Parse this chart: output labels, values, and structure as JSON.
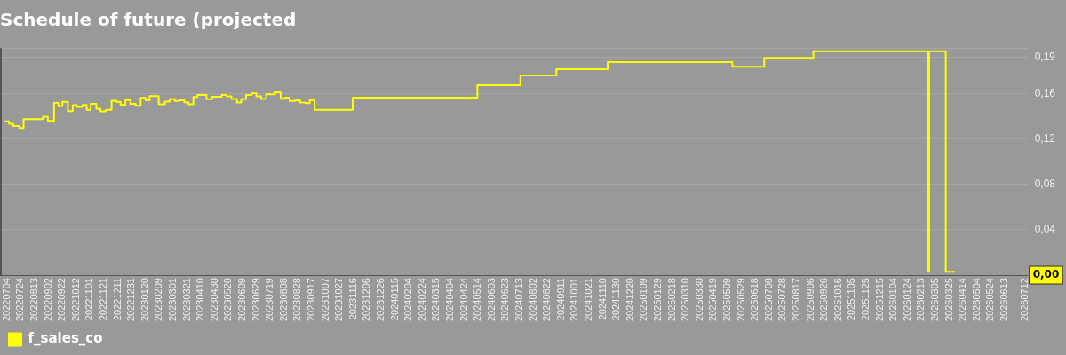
{
  "chart_data": {
    "type": "step",
    "title": "Schedule of future (projected",
    "x": [
      "2022-07-01",
      "2022-07-07",
      "2022-07-13",
      "2022-07-22",
      "2022-07-28",
      "2022-08-25",
      "2022-09-01",
      "2022-09-10",
      "2022-09-16",
      "2022-09-22",
      "2022-09-30",
      "2022-10-07",
      "2022-10-13",
      "2022-10-21",
      "2022-10-27",
      "2022-11-02",
      "2022-11-10",
      "2022-11-16",
      "2022-11-24",
      "2022-12-02",
      "2022-12-09",
      "2022-12-15",
      "2022-12-22",
      "2022-12-29",
      "2023-01-06",
      "2023-01-13",
      "2023-01-20",
      "2023-01-26",
      "2023-02-08",
      "2023-02-17",
      "2023-02-24",
      "2023-03-03",
      "2023-03-10",
      "2023-03-17",
      "2023-03-23",
      "2023-03-30",
      "2023-04-05",
      "2023-04-18",
      "2023-04-26",
      "2023-05-10",
      "2023-05-17",
      "2023-05-24",
      "2023-06-01",
      "2023-06-07",
      "2023-06-14",
      "2023-06-22",
      "2023-06-29",
      "2023-07-06",
      "2023-07-13",
      "2023-07-26",
      "2023-08-03",
      "2023-08-09",
      "2023-08-16",
      "2023-08-24",
      "2023-08-31",
      "2023-09-08",
      "2023-09-14",
      "2023-09-21",
      "2023-11-15",
      "2024-05-13",
      "2024-07-14",
      "2024-09-04",
      "2024-11-17",
      "2025-05-16",
      "2025-07-01",
      "2025-09-10",
      "2026-02-22",
      "2026-02-24",
      "2026-03-20",
      "2026-04-02"
    ],
    "series": [
      {
        "name": "f_sales_co",
        "color": "#ffff00",
        "values": [
          0.1354,
          0.1333,
          0.1313,
          0.1296,
          0.1374,
          0.1394,
          0.1357,
          0.1516,
          0.1487,
          0.1525,
          0.1443,
          0.1496,
          0.1481,
          0.1498,
          0.1455,
          0.1507,
          0.1464,
          0.1441,
          0.1455,
          0.1536,
          0.1525,
          0.1498,
          0.1542,
          0.1507,
          0.149,
          0.156,
          0.1539,
          0.1577,
          0.1504,
          0.1528,
          0.1551,
          0.1533,
          0.1539,
          0.1522,
          0.1504,
          0.1568,
          0.1586,
          0.1548,
          0.1571,
          0.1586,
          0.1574,
          0.1551,
          0.1519,
          0.1548,
          0.1586,
          0.16,
          0.1574,
          0.1551,
          0.1591,
          0.1609,
          0.1551,
          0.1562,
          0.1533,
          0.1539,
          0.1519,
          0.1513,
          0.1542,
          0.1455,
          0.1562,
          0.1672,
          0.1757,
          0.1812,
          0.1875,
          0.1835,
          0.1913,
          0.1971,
          0.003,
          0.1971,
          0.003,
          0.003
        ]
      }
    ],
    "xlim": [
      "2022-06-24",
      "2026-07-16"
    ],
    "xticks": [
      {
        "value": "2022-07-04",
        "label": "20220704"
      },
      {
        "value": "2022-07-24",
        "label": "20220724"
      },
      {
        "value": "2022-08-13",
        "label": "20220813"
      },
      {
        "value": "2022-09-02",
        "label": "20220902"
      },
      {
        "value": "2022-09-22",
        "label": "20220922"
      },
      {
        "value": "2022-10-12",
        "label": "20221012"
      },
      {
        "value": "2022-11-01",
        "label": "20221101"
      },
      {
        "value": "2022-11-21",
        "label": "20221121"
      },
      {
        "value": "2022-12-11",
        "label": "20221211"
      },
      {
        "value": "2022-12-31",
        "label": "20221231"
      },
      {
        "value": "2023-01-20",
        "label": "20230120"
      },
      {
        "value": "2023-02-09",
        "label": "20230209"
      },
      {
        "value": "2023-03-01",
        "label": "20230301"
      },
      {
        "value": "2023-03-21",
        "label": "20230321"
      },
      {
        "value": "2023-04-10",
        "label": "20230410"
      },
      {
        "value": "2023-04-30",
        "label": "20230430"
      },
      {
        "value": "2023-05-20",
        "label": "20230520"
      },
      {
        "value": "2023-06-09",
        "label": "20230609"
      },
      {
        "value": "2023-06-29",
        "label": "20230629"
      },
      {
        "value": "2023-07-19",
        "label": "20230719"
      },
      {
        "value": "2023-08-08",
        "label": "20230808"
      },
      {
        "value": "2023-08-28",
        "label": "20230828"
      },
      {
        "value": "2023-09-17",
        "label": "20230917"
      },
      {
        "value": "2023-10-07",
        "label": "20231007"
      },
      {
        "value": "2023-10-27",
        "label": "20231027"
      },
      {
        "value": "2023-11-16",
        "label": "20231116"
      },
      {
        "value": "2023-12-06",
        "label": "20231206"
      },
      {
        "value": "2023-12-26",
        "label": "20231226"
      },
      {
        "value": "2024-01-15",
        "label": "20240115"
      },
      {
        "value": "2024-02-04",
        "label": "20240204"
      },
      {
        "value": "2024-02-24",
        "label": "20240224"
      },
      {
        "value": "2024-03-15",
        "label": "20240315"
      },
      {
        "value": "2024-04-04",
        "label": "20240404"
      },
      {
        "value": "2024-04-24",
        "label": "20240424"
      },
      {
        "value": "2024-05-14",
        "label": "20240514"
      },
      {
        "value": "2024-06-03",
        "label": "20240603"
      },
      {
        "value": "2024-06-23",
        "label": "20240623"
      },
      {
        "value": "2024-07-13",
        "label": "20240713"
      },
      {
        "value": "2024-08-02",
        "label": "20240802"
      },
      {
        "value": "2024-08-22",
        "label": "20240822"
      },
      {
        "value": "2024-09-11",
        "label": "20240911"
      },
      {
        "value": "2024-10-01",
        "label": "20241001"
      },
      {
        "value": "2024-10-21",
        "label": "20241021"
      },
      {
        "value": "2024-11-10",
        "label": "20241110"
      },
      {
        "value": "2024-11-30",
        "label": "20241130"
      },
      {
        "value": "2024-12-20",
        "label": "20241220"
      },
      {
        "value": "2025-01-09",
        "label": "20250109"
      },
      {
        "value": "2025-01-29",
        "label": "20250129"
      },
      {
        "value": "2025-02-18",
        "label": "20250218"
      },
      {
        "value": "2025-03-10",
        "label": "20250310"
      },
      {
        "value": "2025-03-30",
        "label": "20250330"
      },
      {
        "value": "2025-04-19",
        "label": "20250419"
      },
      {
        "value": "2025-05-09",
        "label": "20250509"
      },
      {
        "value": "2025-05-29",
        "label": "20250529"
      },
      {
        "value": "2025-06-18",
        "label": "20250618"
      },
      {
        "value": "2025-07-08",
        "label": "20250708"
      },
      {
        "value": "2025-07-28",
        "label": "20250728"
      },
      {
        "value": "2025-08-17",
        "label": "20250817"
      },
      {
        "value": "2025-09-06",
        "label": "20250906"
      },
      {
        "value": "2025-09-26",
        "label": "20250926"
      },
      {
        "value": "2025-10-16",
        "label": "20251016"
      },
      {
        "value": "2025-11-05",
        "label": "20251105"
      },
      {
        "value": "2025-11-25",
        "label": "20251125"
      },
      {
        "value": "2025-12-15",
        "label": "20251215"
      },
      {
        "value": "2026-01-04",
        "label": "20260104"
      },
      {
        "value": "2026-01-24",
        "label": "20260124"
      },
      {
        "value": "2026-02-13",
        "label": "20260213"
      },
      {
        "value": "2026-03-05",
        "label": "20260305"
      },
      {
        "value": "2026-03-25",
        "label": "20260325"
      },
      {
        "value": "2026-04-14",
        "label": "20260414"
      },
      {
        "value": "2026-05-04",
        "label": "20260504"
      },
      {
        "value": "2026-05-24",
        "label": "20260524"
      },
      {
        "value": "2026-06-13",
        "label": "20260613"
      },
      {
        "value": "2026-07-12",
        "label": "20260712"
      }
    ],
    "ylim": [
      0,
      0.2
    ],
    "yticks": [
      {
        "value": 0.04,
        "label": "0,04"
      },
      {
        "value": 0.08,
        "label": "0,08"
      },
      {
        "value": 0.12,
        "label": "0,12"
      },
      {
        "value": 0.16,
        "label": "0,16"
      },
      {
        "value": 0.192,
        "label": "0,19"
      },
      {
        "value": 0.2,
        "label": null
      }
    ],
    "annotations": [
      {
        "text": "0,00",
        "y": 0
      }
    ],
    "grid": "y",
    "legend": "bottom left"
  }
}
